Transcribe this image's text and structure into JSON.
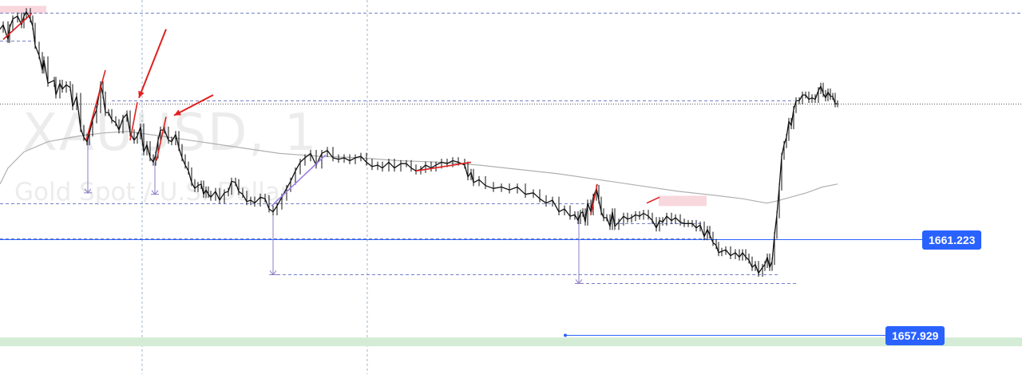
{
  "chart_data": {
    "type": "line",
    "symbol": "XAUUSD",
    "watermark_symbol": "XAUUSD, 1",
    "watermark_description": "Gold Spot / U.S. Dollar",
    "timeframe": "1",
    "ylim": [
      1656.6,
      1669.4
    ],
    "price_series": {
      "name": "XAUUSD 1m close (approx.)",
      "x": [
        0,
        4,
        10,
        12,
        16,
        22,
        27,
        30,
        33,
        38,
        41,
        44,
        49,
        53,
        55,
        60,
        68,
        70,
        75,
        78,
        83,
        88,
        91,
        96,
        101,
        105,
        109,
        112,
        116,
        121,
        126,
        129,
        132,
        136,
        140,
        145,
        149,
        154,
        159,
        163,
        168,
        172,
        176,
        180,
        184,
        188,
        192,
        195,
        198,
        201,
        206,
        211,
        215,
        220,
        224,
        228,
        232,
        236,
        240,
        244,
        248,
        252,
        255,
        258,
        261,
        264,
        270,
        275,
        281,
        286,
        290,
        295,
        299,
        304,
        309,
        314,
        319,
        326,
        332,
        337,
        342,
        347,
        353,
        359,
        364,
        370,
        376,
        382,
        389,
        396,
        403,
        410,
        417,
        424,
        431,
        438,
        445,
        452,
        459,
        466,
        473,
        479,
        487,
        494,
        502,
        509,
        515,
        521,
        527,
        533,
        540,
        546,
        553,
        560,
        567,
        574,
        582,
        586,
        590,
        593,
        600,
        608,
        618,
        628,
        638,
        648,
        658,
        668,
        676,
        684,
        692,
        700,
        707,
        714,
        720,
        724,
        727,
        730,
        733,
        736,
        740,
        743,
        747,
        750,
        753,
        756,
        760,
        764,
        767,
        770,
        775,
        781,
        786,
        791,
        796,
        801,
        806,
        812,
        817,
        822,
        826,
        830,
        835,
        841,
        846,
        852,
        857,
        862,
        867,
        872,
        877,
        882,
        886,
        889,
        893,
        897,
        900,
        904,
        909,
        915,
        921,
        926,
        930,
        934,
        938,
        942,
        946,
        950,
        955,
        958,
        961,
        964,
        967,
        970,
        973,
        976,
        979,
        982,
        985,
        988,
        991,
        994,
        997,
        1001,
        1005,
        1009,
        1013,
        1017,
        1021,
        1025,
        1028,
        1031,
        1034,
        1037,
        1040,
        1043,
        1046,
        1049
      ],
      "values": [
        1668.4,
        1668.55,
        1668.05,
        1668.45,
        1668.75,
        1668.85,
        1668.55,
        1668.85,
        1669.0,
        1668.75,
        1668.5,
        1667.85,
        1667.5,
        1667.0,
        1667.35,
        1666.55,
        1666.65,
        1666.15,
        1666.55,
        1666.35,
        1666.5,
        1666.4,
        1665.75,
        1666.1,
        1665.0,
        1664.7,
        1664.55,
        1664.85,
        1665.3,
        1665.65,
        1666.5,
        1666.15,
        1665.55,
        1665.55,
        1665.3,
        1665.2,
        1664.95,
        1665.35,
        1665.5,
        1664.85,
        1664.6,
        1664.75,
        1665.05,
        1664.2,
        1664.45,
        1664.0,
        1663.85,
        1664.1,
        1664.6,
        1664.95,
        1664.95,
        1664.6,
        1664.55,
        1664.8,
        1664.35,
        1664.0,
        1663.75,
        1663.55,
        1663.15,
        1662.95,
        1663.05,
        1663.1,
        1662.75,
        1662.9,
        1662.75,
        1662.65,
        1662.85,
        1662.55,
        1662.8,
        1662.85,
        1663.2,
        1663.15,
        1662.85,
        1662.75,
        1662.5,
        1662.55,
        1662.45,
        1662.65,
        1662.6,
        1662.25,
        1662.15,
        1662.35,
        1662.65,
        1662.95,
        1663.2,
        1663.55,
        1663.85,
        1664.0,
        1664.15,
        1663.75,
        1664.15,
        1664.25,
        1664.0,
        1663.95,
        1664.0,
        1663.9,
        1664.0,
        1664.05,
        1663.85,
        1663.7,
        1663.75,
        1663.65,
        1663.85,
        1663.65,
        1663.8,
        1663.8,
        1663.65,
        1663.55,
        1663.6,
        1663.75,
        1663.65,
        1663.75,
        1663.85,
        1663.8,
        1663.9,
        1663.85,
        1663.75,
        1663.35,
        1663.5,
        1663.15,
        1663.25,
        1663.05,
        1662.95,
        1663.0,
        1662.9,
        1663.0,
        1662.75,
        1662.8,
        1662.6,
        1662.45,
        1662.55,
        1662.15,
        1662.25,
        1662.0,
        1662.05,
        1661.85,
        1662.1,
        1662.15,
        1661.8,
        1662.45,
        1662.15,
        1662.65,
        1662.95,
        1662.55,
        1662.15,
        1661.95,
        1661.95,
        1661.65,
        1662.15,
        1661.65,
        1661.8,
        1662.0,
        1661.9,
        1661.95,
        1662.05,
        1662.0,
        1662.1,
        1662.0,
        1661.85,
        1661.6,
        1661.85,
        1661.8,
        1662.0,
        1661.85,
        1661.95,
        1661.8,
        1661.75,
        1661.75,
        1661.75,
        1661.6,
        1661.7,
        1661.3,
        1661.55,
        1661.35,
        1661.1,
        1661.0,
        1660.75,
        1660.8,
        1660.85,
        1660.65,
        1660.75,
        1660.6,
        1660.75,
        1660.6,
        1660.5,
        1660.25,
        1660.35,
        1660.05,
        1660.25,
        1660.35,
        1660.6,
        1660.25,
        1660.45,
        1661.35,
        1662.05,
        1663.0,
        1664.05,
        1664.45,
        1664.7,
        1665.25,
        1665.1,
        1665.65,
        1665.95,
        1665.95,
        1666.15,
        1666.15,
        1666.0,
        1666.05,
        1666.0,
        1666.3,
        1666.45,
        1666.2,
        1666.05,
        1666.25,
        1666.1,
        1666.1,
        1665.85,
        1665.85
      ],
      "last_value": 1665.85
    },
    "moving_average": {
      "name": "Moving average (grey)",
      "x": [
        0,
        10,
        30,
        60,
        100,
        130,
        160,
        200,
        250,
        300,
        350,
        400,
        450,
        500,
        550,
        600,
        650,
        700,
        750,
        800,
        850,
        900,
        930,
        960,
        970,
        990,
        1010,
        1030,
        1049
      ],
      "values": [
        1663.1,
        1663.65,
        1664.2,
        1664.55,
        1664.75,
        1664.85,
        1664.9,
        1664.75,
        1664.55,
        1664.35,
        1664.15,
        1664.05,
        1664.0,
        1663.9,
        1663.85,
        1663.75,
        1663.6,
        1663.45,
        1663.25,
        1663.05,
        1662.85,
        1662.7,
        1662.6,
        1662.45,
        1662.5,
        1662.65,
        1662.8,
        1663.0,
        1663.1
      ]
    },
    "horizontal_levels": [
      {
        "name": "blue-level-upper",
        "label": "1661.223",
        "value": 1661.223,
        "color": "#2962ff",
        "x_start": 0
      },
      {
        "name": "blue-level-lower",
        "label": "1657.929",
        "value": 1657.929,
        "color": "#2962ff",
        "x_start": 708
      }
    ],
    "dashed_levels": [
      {
        "value": 1668.95,
        "x_start": 0,
        "x_end": 1280
      },
      {
        "value": 1668.0,
        "x_start": 0,
        "x_end": 44
      },
      {
        "value": 1665.95,
        "x_start": 140,
        "x_end": 995
      },
      {
        "value": 1662.45,
        "x_start": 0,
        "x_end": 740
      },
      {
        "value": 1661.25,
        "x_start": 0,
        "x_end": 885
      },
      {
        "value": 1660.0,
        "x_start": 340,
        "x_end": 975
      },
      {
        "value": 1659.7,
        "x_start": 720,
        "x_end": 1000
      },
      {
        "value": 1661.75,
        "x_start": 762,
        "x_end": 880
      }
    ],
    "current_price_line": 1665.85,
    "vertical_gridlines_x": [
      178,
      460
    ],
    "zones": [
      {
        "name": "pink-zone-top-left",
        "color": "#f8d7dd",
        "x_start": 0,
        "x_end": 58,
        "y_low": 1668.95,
        "y_high": 1669.2
      },
      {
        "name": "pink-zone-mid-right",
        "color": "#f8d7dd",
        "x_start": 825,
        "x_end": 885,
        "y_low": 1662.35,
        "y_high": 1662.7
      },
      {
        "name": "green-support-band",
        "color": "#d4ecd5",
        "x_start": 0,
        "x_end": 1280,
        "y_low": 1657.55,
        "y_high": 1657.85
      }
    ],
    "trend_segments": [
      {
        "color": "#e02020",
        "points": [
          [
            108,
            1664.6
          ],
          [
            132,
            1667.0
          ]
        ]
      },
      {
        "color": "#e02020",
        "points": [
          [
            163,
            1664.6
          ],
          [
            172,
            1665.9
          ]
        ]
      },
      {
        "color": "#e02020",
        "points": [
          [
            196,
            1663.9
          ],
          [
            208,
            1665.4
          ]
        ]
      },
      {
        "color": "#e02020",
        "points": [
          [
            4,
            1668.05
          ],
          [
            40,
            1668.95
          ]
        ]
      },
      {
        "color": "#e02020",
        "points": [
          [
            521,
            1663.55
          ],
          [
            590,
            1663.85
          ]
        ]
      },
      {
        "color": "#e02020",
        "points": [
          [
            740,
            1662.05
          ],
          [
            748,
            1663.1
          ]
        ]
      },
      {
        "color": "#e02020",
        "points": [
          [
            810,
            1662.45
          ],
          [
            826,
            1662.65
          ]
        ]
      },
      {
        "color": "#9c7fe0",
        "points": [
          [
            340,
            1662.35
          ],
          [
            408,
            1664.1
          ]
        ]
      }
    ],
    "arrows": [
      {
        "color": "#e02020",
        "from": [
          208,
          1668.4
        ],
        "to": [
          174,
          1666.05
        ]
      },
      {
        "color": "#e02020",
        "from": [
          267,
          1666.15
        ],
        "to": [
          218,
          1665.45
        ]
      }
    ],
    "measure_lines": [
      {
        "x": 110,
        "from": 1664.6,
        "to": 1662.8
      },
      {
        "x": 194,
        "from": 1663.85,
        "to": 1662.75
      },
      {
        "x": 342,
        "from": 1662.35,
        "to": 1660.0
      },
      {
        "x": 725,
        "from": 1661.95,
        "to": 1659.7
      }
    ],
    "price_labels": [
      {
        "label": "1661.223",
        "value": 1661.223
      },
      {
        "label": "1657.929",
        "value": 1657.929
      }
    ]
  }
}
